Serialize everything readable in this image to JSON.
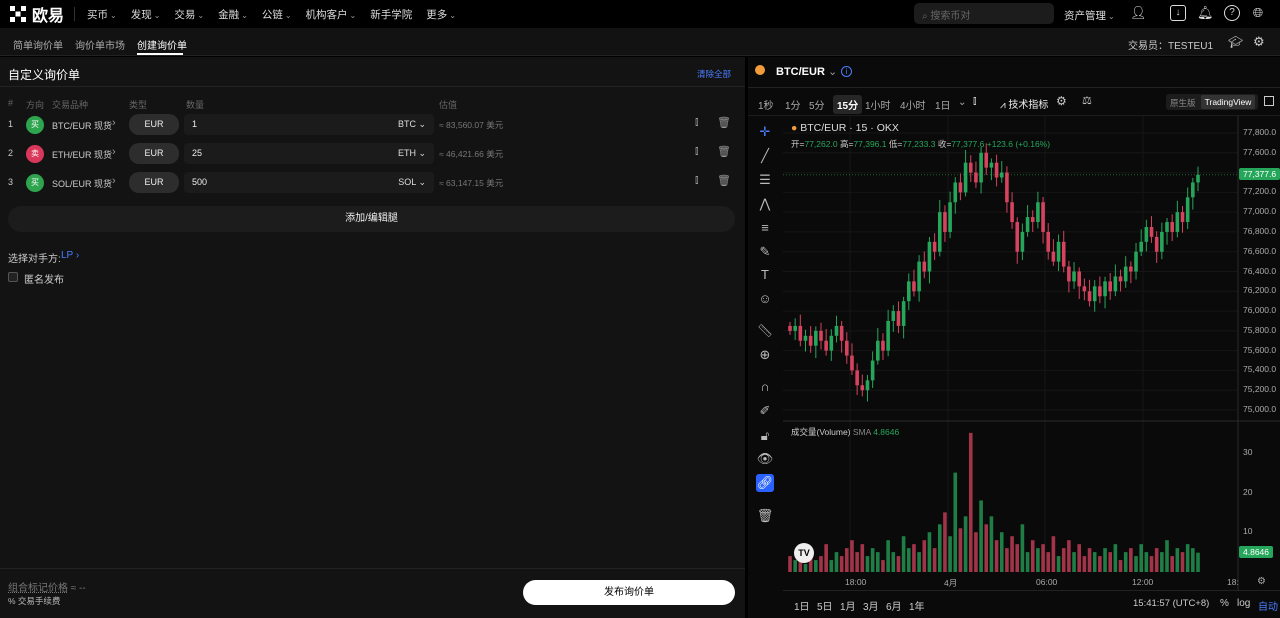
{
  "nav": {
    "brand": "欧易",
    "items": [
      "买币",
      "发现",
      "交易",
      "金融",
      "公链",
      "机构客户",
      "新手学院",
      "更多"
    ],
    "has_chevron": [
      true,
      true,
      true,
      true,
      true,
      true,
      false,
      true
    ],
    "search_placeholder": "搜索币对",
    "assets": "资产管理"
  },
  "subnav": {
    "tabs": [
      "简单询价单",
      "询价单市场",
      "创建询价单"
    ],
    "active": 2,
    "trader_label": "交易员：",
    "trader": "TESTEU1"
  },
  "form": {
    "title": "自定义询价单",
    "clear_all": "清除全部",
    "headers": [
      "#",
      "方向",
      "交易品种",
      "类型",
      "数量",
      "估值"
    ],
    "legs": [
      {
        "no": "1",
        "side": "买",
        "side_color": "#2ea44f",
        "instrument": "BTC/EUR 现货",
        "type": "EUR",
        "qty": "1",
        "unit": "BTC",
        "est": "≈ 83,560.07 美元"
      },
      {
        "no": "2",
        "side": "卖",
        "side_color": "#d9385a",
        "instrument": "ETH/EUR 现货",
        "type": "EUR",
        "qty": "25",
        "unit": "ETH",
        "est": "≈ 46,421.66 美元"
      },
      {
        "no": "3",
        "side": "买",
        "side_color": "#2ea44f",
        "instrument": "SOL/EUR 现货",
        "type": "EUR",
        "qty": "500",
        "unit": "SOL",
        "est": "≈ 63,147.15 美元"
      }
    ],
    "add_leg": "添加/编辑腿",
    "counterparty_label": "选择对手方:",
    "counterparty": "LP",
    "anonymous": "匿名发布",
    "anonymous_checked": false,
    "mark_price_label": "组合标记价格",
    "mark_price": "≈ --",
    "fee": "% 交易手续费",
    "submit": "发布询价单"
  },
  "chart": {
    "pair": "BTC/EUR",
    "timeframes": [
      "1秒",
      "1分",
      "5分",
      "15分",
      "1小时",
      "4小时",
      "1日"
    ],
    "active_tf": "15分",
    "indicators": "技术指标",
    "view_native": "原生版",
    "view_tv": "TradingView",
    "legend_title": "BTC/EUR · 15 · OKX",
    "ohlc": {
      "o_label": "开=",
      "o": "77,262.0",
      "h_label": "高=",
      "h": "77,396.1",
      "l_label": "低=",
      "l": "77,233.3",
      "c_label": "收=",
      "c": "77,377.6",
      "chg": "+123.6 (+0.16%)"
    },
    "volume_label": "成交量(Volume)",
    "volume_sma": "SMA",
    "volume_value": "4.8646",
    "ranges": [
      "1日",
      "5日",
      "1月",
      "3月",
      "6月",
      "1年"
    ],
    "time": "15:41:57 (UTC+8)",
    "pct": "%",
    "log": "log",
    "auto": "自动",
    "up_color": "#26a65b",
    "down_color": "#d6435f"
  },
  "chart_data": {
    "type": "candlestick",
    "price_axis": [
      "77,800.0",
      "77,600.0",
      "77,200.0",
      "77,000.0",
      "76,800.0",
      "76,600.0",
      "76,400.0",
      "76,200.0",
      "76,000.0",
      "75,800.0",
      "75,600.0",
      "75,400.0",
      "75,200.0",
      "75,000.0"
    ],
    "last_price": "77,377.6",
    "ylim": [
      75000,
      77800
    ],
    "volume_axis": [
      "30",
      "20",
      "10"
    ],
    "volume_ylim": [
      0,
      40
    ],
    "x_ticks": [
      "18:00",
      "4月",
      "06:00",
      "12:00",
      "18:"
    ],
    "close": [
      75800,
      75850,
      75700,
      75750,
      75650,
      75800,
      75700,
      75600,
      75750,
      75850,
      75700,
      75550,
      75400,
      75250,
      75200,
      75300,
      75500,
      75700,
      75600,
      75900,
      76000,
      75850,
      76100,
      76300,
      76200,
      76500,
      76400,
      76700,
      76600,
      77000,
      76800,
      77100,
      77300,
      77200,
      77500,
      77400,
      77300,
      77600,
      77450,
      77500,
      77350,
      77400,
      77100,
      76900,
      76600,
      76800,
      76950,
      76900,
      77100,
      76800,
      76600,
      76500,
      76700,
      76450,
      76300,
      76400,
      76250,
      76200,
      76100,
      76250,
      76150,
      76300,
      76200,
      76350,
      76300,
      76450,
      76400,
      76600,
      76700,
      76850,
      76750,
      76600,
      76800,
      76900,
      76800,
      77000,
      76900,
      77150,
      77300,
      77377.6
    ],
    "volume": [
      4,
      3,
      5,
      2,
      6,
      3,
      4,
      7,
      3,
      5,
      4,
      6,
      8,
      5,
      7,
      4,
      6,
      5,
      3,
      8,
      5,
      4,
      9,
      6,
      7,
      5,
      8,
      10,
      6,
      12,
      15,
      9,
      25,
      11,
      14,
      35,
      10,
      18,
      12,
      14,
      8,
      10,
      6,
      9,
      7,
      12,
      5,
      8,
      6,
      7,
      5,
      9,
      4,
      6,
      8,
      5,
      7,
      4,
      6,
      5,
      4,
      6,
      5,
      7,
      3,
      5,
      6,
      4,
      7,
      5,
      4,
      6,
      5,
      8,
      4,
      6,
      5,
      7,
      6,
      4.8646
    ]
  }
}
